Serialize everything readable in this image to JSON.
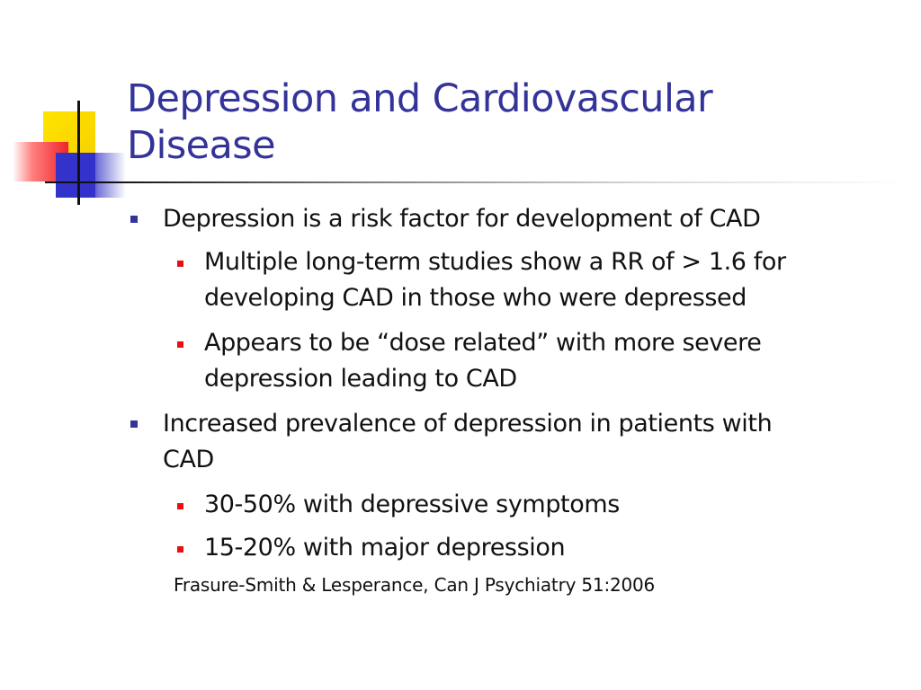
{
  "slide": {
    "title_lines": [
      "Depression and Cardiovascular",
      "Disease"
    ],
    "bullets": [
      {
        "text": "Depression is a risk factor for development of CAD",
        "sub": [
          {
            "lines": [
              "Multiple long-term studies show a RR of > 1.6 for",
              "developing CAD in those who were depressed"
            ]
          },
          {
            "lines": [
              "Appears to be “dose related” with more severe",
              "depression leading to CAD"
            ]
          }
        ]
      },
      {
        "lines": [
          "Increased prevalence of depression in patients with",
          "CAD"
        ],
        "sub": [
          {
            "lines": [
              "30-50% with depressive symptoms"
            ]
          },
          {
            "lines": [
              "15-20% with major depression"
            ]
          }
        ]
      }
    ],
    "citation": "Frasure-Smith & Lesperance, Can J Psychiatry 51:2006"
  },
  "colors": {
    "title": "#333399",
    "level1_bullet": "#333399",
    "level2_bullet": "#e81010",
    "logo_yellow": "#f6d000",
    "logo_red": "#f0242a",
    "logo_blue": "#3333cc"
  },
  "icons": {
    "logo": "overlapping-squares-logo",
    "level1_bullet": "square-bullet-icon",
    "level2_bullet": "square-bullet-icon"
  }
}
